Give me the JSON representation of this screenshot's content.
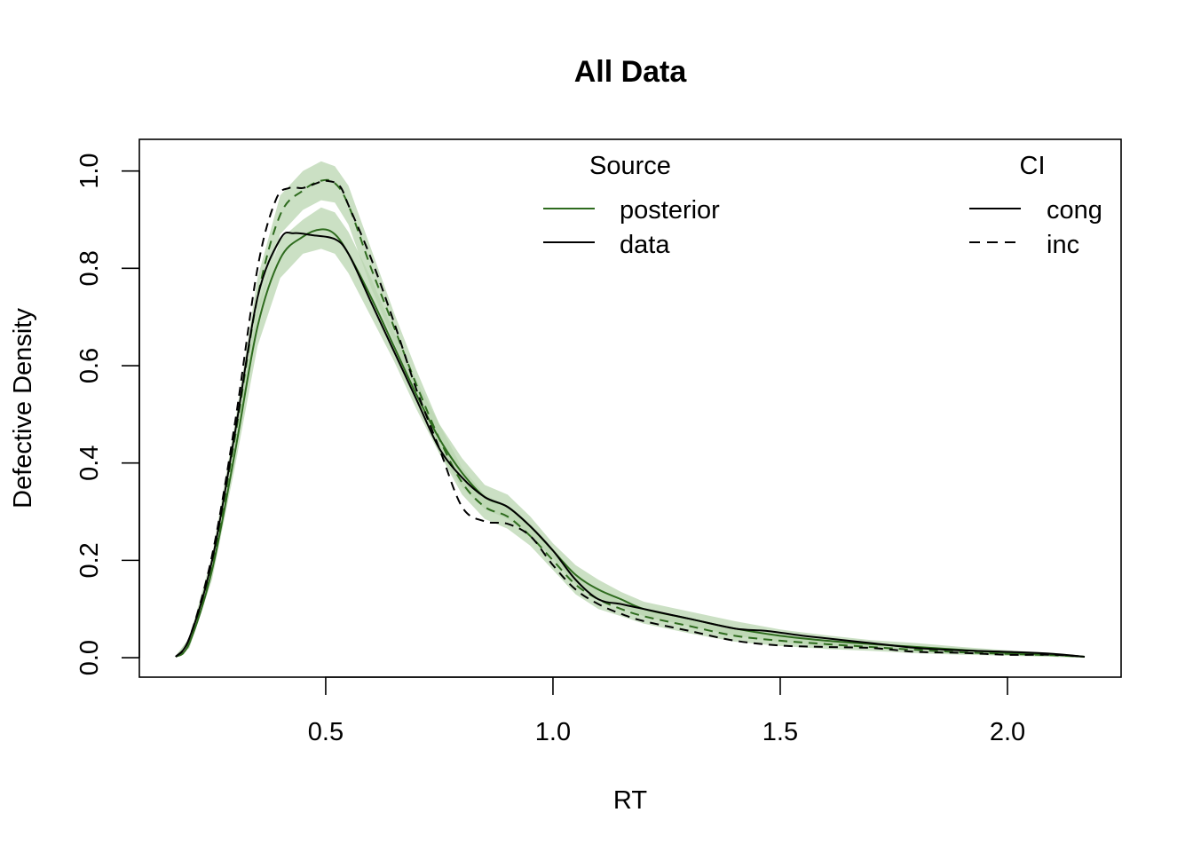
{
  "chart_data": {
    "type": "line",
    "title": "All Data",
    "xlabel": "RT",
    "ylabel": "Defective Density",
    "xlim": [
      0.09,
      2.25
    ],
    "ylim": [
      -0.04,
      1.065
    ],
    "xticks": [
      "0.5",
      "1.0",
      "1.5",
      "2.0"
    ],
    "yticks": [
      "0.0",
      "0.2",
      "0.4",
      "0.6",
      "0.8",
      "1.0"
    ],
    "legends": [
      {
        "title": "Source",
        "placement": "top-center",
        "entries": [
          {
            "label": "posterior",
            "color": "#2e6b1e",
            "linestyle": "solid"
          },
          {
            "label": "data",
            "color": "#000000",
            "linestyle": "solid"
          }
        ]
      },
      {
        "title": "CI",
        "placement": "top-right",
        "entries": [
          {
            "label": "cong",
            "color": "#000000",
            "linestyle": "solid"
          },
          {
            "label": "inc",
            "color": "#000000",
            "linestyle": "dashed"
          }
        ]
      }
    ],
    "band_color": "#b9d6b0",
    "series": [
      {
        "name": "posterior",
        "condition": "cong",
        "style": "posterior-solid",
        "points": [
          [
            0.17,
            0.002
          ],
          [
            0.2,
            0.03
          ],
          [
            0.25,
            0.18
          ],
          [
            0.3,
            0.42
          ],
          [
            0.35,
            0.68
          ],
          [
            0.4,
            0.82
          ],
          [
            0.45,
            0.865
          ],
          [
            0.49,
            0.88
          ],
          [
            0.52,
            0.87
          ],
          [
            0.55,
            0.83
          ],
          [
            0.6,
            0.74
          ],
          [
            0.65,
            0.64
          ],
          [
            0.7,
            0.54
          ],
          [
            0.75,
            0.45
          ],
          [
            0.8,
            0.38
          ],
          [
            0.85,
            0.33
          ],
          [
            0.9,
            0.31
          ],
          [
            0.95,
            0.27
          ],
          [
            1.0,
            0.22
          ],
          [
            1.05,
            0.17
          ],
          [
            1.1,
            0.14
          ],
          [
            1.15,
            0.12
          ],
          [
            1.2,
            0.1
          ],
          [
            1.3,
            0.08
          ],
          [
            1.4,
            0.06
          ],
          [
            1.5,
            0.045
          ],
          [
            1.6,
            0.035
          ],
          [
            1.7,
            0.028
          ],
          [
            1.8,
            0.022
          ],
          [
            1.9,
            0.016
          ],
          [
            2.0,
            0.01
          ],
          [
            2.1,
            0.006
          ],
          [
            2.17,
            0.002
          ]
        ]
      },
      {
        "name": "posterior",
        "condition": "inc",
        "style": "posterior-dashed",
        "points": [
          [
            0.17,
            0.002
          ],
          [
            0.2,
            0.03
          ],
          [
            0.25,
            0.19
          ],
          [
            0.3,
            0.45
          ],
          [
            0.35,
            0.74
          ],
          [
            0.4,
            0.91
          ],
          [
            0.45,
            0.96
          ],
          [
            0.49,
            0.98
          ],
          [
            0.52,
            0.975
          ],
          [
            0.55,
            0.93
          ],
          [
            0.6,
            0.8
          ],
          [
            0.65,
            0.68
          ],
          [
            0.7,
            0.56
          ],
          [
            0.75,
            0.45
          ],
          [
            0.8,
            0.36
          ],
          [
            0.85,
            0.31
          ],
          [
            0.9,
            0.29
          ],
          [
            0.95,
            0.25
          ],
          [
            1.0,
            0.2
          ],
          [
            1.05,
            0.15
          ],
          [
            1.1,
            0.12
          ],
          [
            1.15,
            0.1
          ],
          [
            1.2,
            0.085
          ],
          [
            1.3,
            0.065
          ],
          [
            1.4,
            0.045
          ],
          [
            1.5,
            0.035
          ],
          [
            1.6,
            0.028
          ],
          [
            1.7,
            0.022
          ],
          [
            1.8,
            0.016
          ],
          [
            1.9,
            0.011
          ],
          [
            2.0,
            0.008
          ],
          [
            2.1,
            0.005
          ],
          [
            2.17,
            0.002
          ]
        ]
      },
      {
        "name": "data",
        "condition": "cong",
        "style": "data-solid",
        "points": [
          [
            0.17,
            0.002
          ],
          [
            0.2,
            0.04
          ],
          [
            0.25,
            0.2
          ],
          [
            0.3,
            0.46
          ],
          [
            0.35,
            0.74
          ],
          [
            0.4,
            0.86
          ],
          [
            0.43,
            0.872
          ],
          [
            0.47,
            0.868
          ],
          [
            0.52,
            0.86
          ],
          [
            0.55,
            0.83
          ],
          [
            0.6,
            0.73
          ],
          [
            0.65,
            0.63
          ],
          [
            0.7,
            0.53
          ],
          [
            0.75,
            0.43
          ],
          [
            0.8,
            0.37
          ],
          [
            0.85,
            0.33
          ],
          [
            0.9,
            0.31
          ],
          [
            0.95,
            0.27
          ],
          [
            1.0,
            0.22
          ],
          [
            1.05,
            0.16
          ],
          [
            1.1,
            0.12
          ],
          [
            1.15,
            0.11
          ],
          [
            1.2,
            0.1
          ],
          [
            1.3,
            0.08
          ],
          [
            1.4,
            0.06
          ],
          [
            1.47,
            0.055
          ],
          [
            1.55,
            0.045
          ],
          [
            1.6,
            0.04
          ],
          [
            1.7,
            0.03
          ],
          [
            1.8,
            0.02
          ],
          [
            1.9,
            0.015
          ],
          [
            2.0,
            0.012
          ],
          [
            2.1,
            0.008
          ],
          [
            2.17,
            0.002
          ]
        ]
      },
      {
        "name": "data",
        "condition": "inc",
        "style": "data-dashed",
        "points": [
          [
            0.17,
            0.002
          ],
          [
            0.2,
            0.04
          ],
          [
            0.25,
            0.21
          ],
          [
            0.3,
            0.48
          ],
          [
            0.35,
            0.8
          ],
          [
            0.39,
            0.94
          ],
          [
            0.42,
            0.965
          ],
          [
            0.45,
            0.965
          ],
          [
            0.48,
            0.975
          ],
          [
            0.5,
            0.98
          ],
          [
            0.53,
            0.97
          ],
          [
            0.55,
            0.93
          ],
          [
            0.6,
            0.82
          ],
          [
            0.65,
            0.69
          ],
          [
            0.7,
            0.55
          ],
          [
            0.75,
            0.43
          ],
          [
            0.8,
            0.31
          ],
          [
            0.85,
            0.28
          ],
          [
            0.9,
            0.275
          ],
          [
            0.95,
            0.25
          ],
          [
            1.0,
            0.19
          ],
          [
            1.05,
            0.14
          ],
          [
            1.1,
            0.11
          ],
          [
            1.15,
            0.09
          ],
          [
            1.2,
            0.075
          ],
          [
            1.3,
            0.055
          ],
          [
            1.4,
            0.035
          ],
          [
            1.5,
            0.025
          ],
          [
            1.6,
            0.022
          ],
          [
            1.7,
            0.02
          ],
          [
            1.8,
            0.012
          ],
          [
            1.9,
            0.01
          ],
          [
            2.0,
            0.006
          ],
          [
            2.1,
            0.006
          ],
          [
            2.17,
            0.002
          ]
        ]
      }
    ],
    "bands": [
      {
        "condition": "cong",
        "x": [
          0.17,
          0.2,
          0.25,
          0.3,
          0.35,
          0.4,
          0.45,
          0.49,
          0.52,
          0.55,
          0.6,
          0.65,
          0.7,
          0.75,
          0.8,
          0.85,
          0.9,
          0.95,
          1.0,
          1.05,
          1.1,
          1.15,
          1.2,
          1.3,
          1.4,
          1.5,
          1.6,
          1.7,
          1.8,
          1.9,
          2.0,
          2.1,
          2.17
        ],
        "upper": [
          0.004,
          0.04,
          0.2,
          0.45,
          0.72,
          0.86,
          0.9,
          0.925,
          0.915,
          0.875,
          0.78,
          0.67,
          0.57,
          0.48,
          0.41,
          0.355,
          0.335,
          0.29,
          0.235,
          0.19,
          0.16,
          0.135,
          0.115,
          0.095,
          0.075,
          0.058,
          0.046,
          0.036,
          0.03,
          0.022,
          0.015,
          0.01,
          0.004
        ],
        "lower": [
          0.0,
          0.02,
          0.16,
          0.39,
          0.64,
          0.78,
          0.83,
          0.84,
          0.83,
          0.79,
          0.7,
          0.61,
          0.51,
          0.42,
          0.35,
          0.305,
          0.285,
          0.25,
          0.205,
          0.15,
          0.12,
          0.105,
          0.085,
          0.065,
          0.045,
          0.032,
          0.024,
          0.02,
          0.014,
          0.01,
          0.005,
          0.002,
          0.0
        ]
      },
      {
        "condition": "inc",
        "x": [
          0.17,
          0.2,
          0.25,
          0.3,
          0.35,
          0.4,
          0.45,
          0.49,
          0.52,
          0.55,
          0.6,
          0.65,
          0.7,
          0.75,
          0.8,
          0.85,
          0.9,
          0.95,
          1.0,
          1.05,
          1.1,
          1.15,
          1.2,
          1.3,
          1.4,
          1.5,
          1.6,
          1.7,
          1.8,
          1.9,
          2.0,
          2.1,
          2.17
        ],
        "upper": [
          0.004,
          0.04,
          0.21,
          0.48,
          0.78,
          0.95,
          1.0,
          1.02,
          1.01,
          0.97,
          0.84,
          0.71,
          0.59,
          0.48,
          0.39,
          0.335,
          0.31,
          0.27,
          0.22,
          0.17,
          0.14,
          0.115,
          0.1,
          0.08,
          0.06,
          0.048,
          0.038,
          0.03,
          0.024,
          0.018,
          0.013,
          0.008,
          0.004
        ],
        "lower": [
          0.0,
          0.02,
          0.17,
          0.42,
          0.7,
          0.87,
          0.92,
          0.94,
          0.935,
          0.89,
          0.76,
          0.65,
          0.53,
          0.42,
          0.335,
          0.285,
          0.265,
          0.23,
          0.18,
          0.13,
          0.1,
          0.085,
          0.07,
          0.05,
          0.033,
          0.024,
          0.018,
          0.014,
          0.009,
          0.006,
          0.004,
          0.002,
          0.0
        ]
      }
    ]
  }
}
